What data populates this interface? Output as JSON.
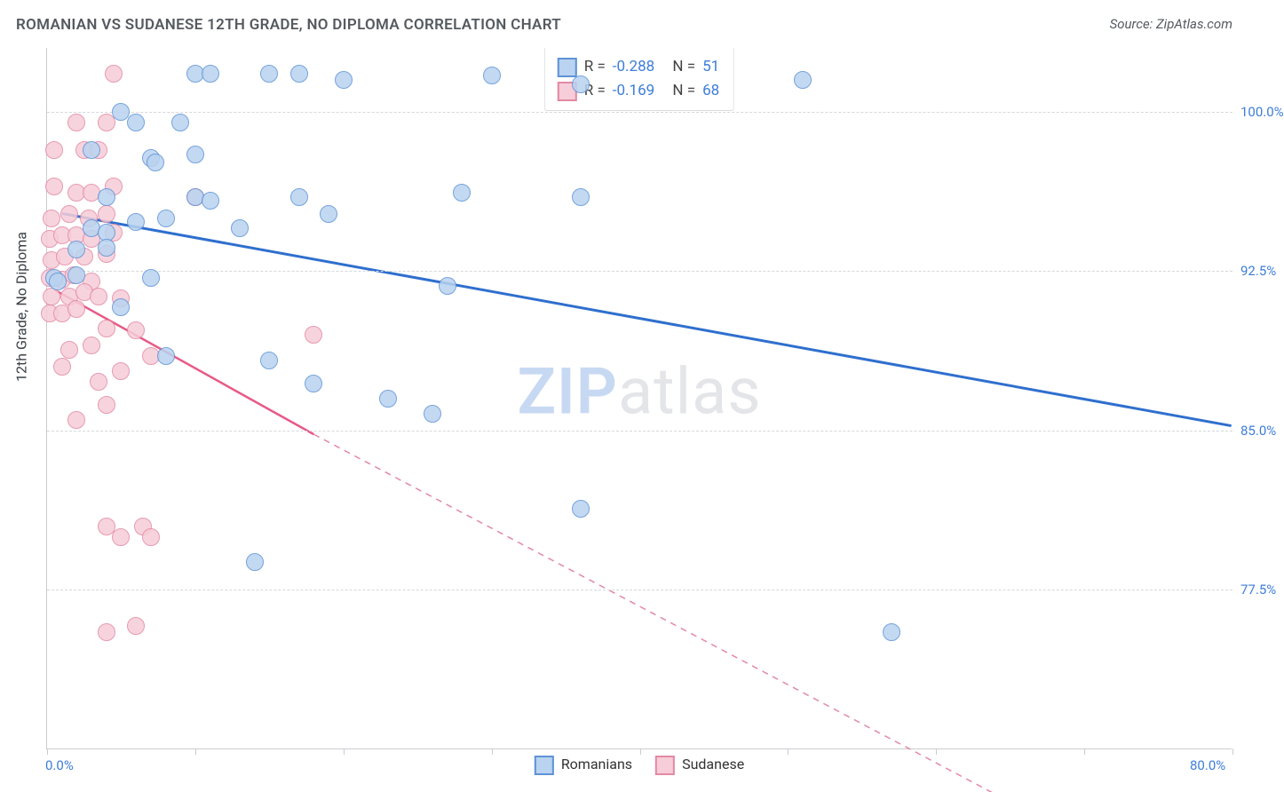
{
  "title": "ROMANIAN VS SUDANESE 12TH GRADE, NO DIPLOMA CORRELATION CHART",
  "source": "Source: ZipAtlas.com",
  "watermark_zip": "ZIP",
  "watermark_rest": "atlas",
  "ylabel": "12th Grade, No Diploma",
  "chart": {
    "type": "scatter",
    "xlim": [
      0,
      80
    ],
    "ylim": [
      70,
      103
    ],
    "xticks": [
      0,
      10,
      20,
      30,
      40,
      50,
      60,
      70,
      80
    ],
    "ygrid": [
      77.5,
      85.0,
      92.5,
      100.0
    ],
    "background": "#ffffff",
    "grid_color": "#d5d7da",
    "axis_color": "#c9ccd0",
    "xlabel_0": "0.0%",
    "xlabel_max": "80.0%",
    "ylabels": [
      "77.5%",
      "85.0%",
      "92.5%",
      "100.0%"
    ]
  },
  "series": {
    "romanians": {
      "label": "Romanians",
      "R": "-0.288",
      "N": "51",
      "marker_fill": "#b9d3f0",
      "marker_stroke": "#5f93d6",
      "line_color": "#2f6fce",
      "line_width": 3,
      "trend_solid": [
        [
          1,
          95.2
        ],
        [
          80,
          85.2
        ]
      ],
      "points": [
        [
          10,
          101.8
        ],
        [
          11,
          101.8
        ],
        [
          15,
          101.8
        ],
        [
          17,
          101.8
        ],
        [
          20,
          101.5
        ],
        [
          30,
          101.7
        ],
        [
          36,
          101.3
        ],
        [
          51,
          101.5
        ],
        [
          5,
          100
        ],
        [
          6,
          99.5
        ],
        [
          9,
          99.5
        ],
        [
          3,
          98.2
        ],
        [
          10,
          98
        ],
        [
          7,
          97.8
        ],
        [
          7.3,
          97.6
        ],
        [
          4,
          96
        ],
        [
          10,
          96
        ],
        [
          11,
          95.8
        ],
        [
          17,
          96
        ],
        [
          28,
          96.2
        ],
        [
          36,
          96
        ],
        [
          3,
          94.5
        ],
        [
          4,
          94.3
        ],
        [
          6,
          94.8
        ],
        [
          8,
          95
        ],
        [
          13,
          94.5
        ],
        [
          19,
          95.2
        ],
        [
          2,
          93.5
        ],
        [
          4,
          93.6
        ],
        [
          0.5,
          92.2
        ],
        [
          0.7,
          92
        ],
        [
          2,
          92.3
        ],
        [
          7,
          92.2
        ],
        [
          5,
          90.8
        ],
        [
          27,
          91.8
        ],
        [
          8,
          88.5
        ],
        [
          15,
          88.3
        ],
        [
          18,
          87.2
        ],
        [
          23,
          86.5
        ],
        [
          26,
          85.8
        ],
        [
          36,
          81.3
        ],
        [
          14,
          78.8
        ],
        [
          57,
          75.5
        ]
      ]
    },
    "sudanese": {
      "label": "Sudanese",
      "R": "-0.169",
      "N": "68",
      "marker_fill": "#f6cdd8",
      "marker_stroke": "#e389a3",
      "line_color": "#e85a86",
      "line_width": 2.5,
      "trend_solid": [
        [
          0.5,
          91.6
        ],
        [
          18,
          84.8
        ]
      ],
      "trend_dashed": [
        [
          18,
          84.8
        ],
        [
          65,
          67.5
        ]
      ],
      "points": [
        [
          4.5,
          101.8
        ],
        [
          2,
          99.5
        ],
        [
          4,
          99.5
        ],
        [
          0.5,
          98.2
        ],
        [
          2.5,
          98.2
        ],
        [
          3.5,
          98.2
        ],
        [
          0.5,
          96.5
        ],
        [
          2,
          96.2
        ],
        [
          3,
          96.2
        ],
        [
          4.5,
          96.5
        ],
        [
          10,
          96
        ],
        [
          0.3,
          95
        ],
        [
          1.5,
          95.2
        ],
        [
          2.8,
          95
        ],
        [
          4,
          95.2
        ],
        [
          0.2,
          94
        ],
        [
          1,
          94.2
        ],
        [
          2,
          94.2
        ],
        [
          3,
          94
        ],
        [
          4.5,
          94.3
        ],
        [
          0.3,
          93
        ],
        [
          1.2,
          93.2
        ],
        [
          2.5,
          93.2
        ],
        [
          4,
          93.3
        ],
        [
          0.2,
          92.2
        ],
        [
          1,
          92.1
        ],
        [
          1.8,
          92.3
        ],
        [
          3,
          92
        ],
        [
          0.3,
          91.3
        ],
        [
          1.5,
          91.3
        ],
        [
          2.5,
          91.5
        ],
        [
          3.5,
          91.3
        ],
        [
          5,
          91.2
        ],
        [
          0.2,
          90.5
        ],
        [
          1,
          90.5
        ],
        [
          2,
          90.7
        ],
        [
          4,
          89.8
        ],
        [
          6,
          89.7
        ],
        [
          18,
          89.5
        ],
        [
          1.5,
          88.8
        ],
        [
          3,
          89
        ],
        [
          7,
          88.5
        ],
        [
          1,
          88
        ],
        [
          5,
          87.8
        ],
        [
          3.5,
          87.3
        ],
        [
          4,
          86.2
        ],
        [
          2,
          85.5
        ],
        [
          4,
          80.5
        ],
        [
          6.5,
          80.5
        ],
        [
          5,
          80
        ],
        [
          7,
          80
        ],
        [
          4,
          75.5
        ],
        [
          6,
          75.8
        ]
      ]
    }
  },
  "legend_text": {
    "R_eq": "R =",
    "N_eq": "N ="
  }
}
